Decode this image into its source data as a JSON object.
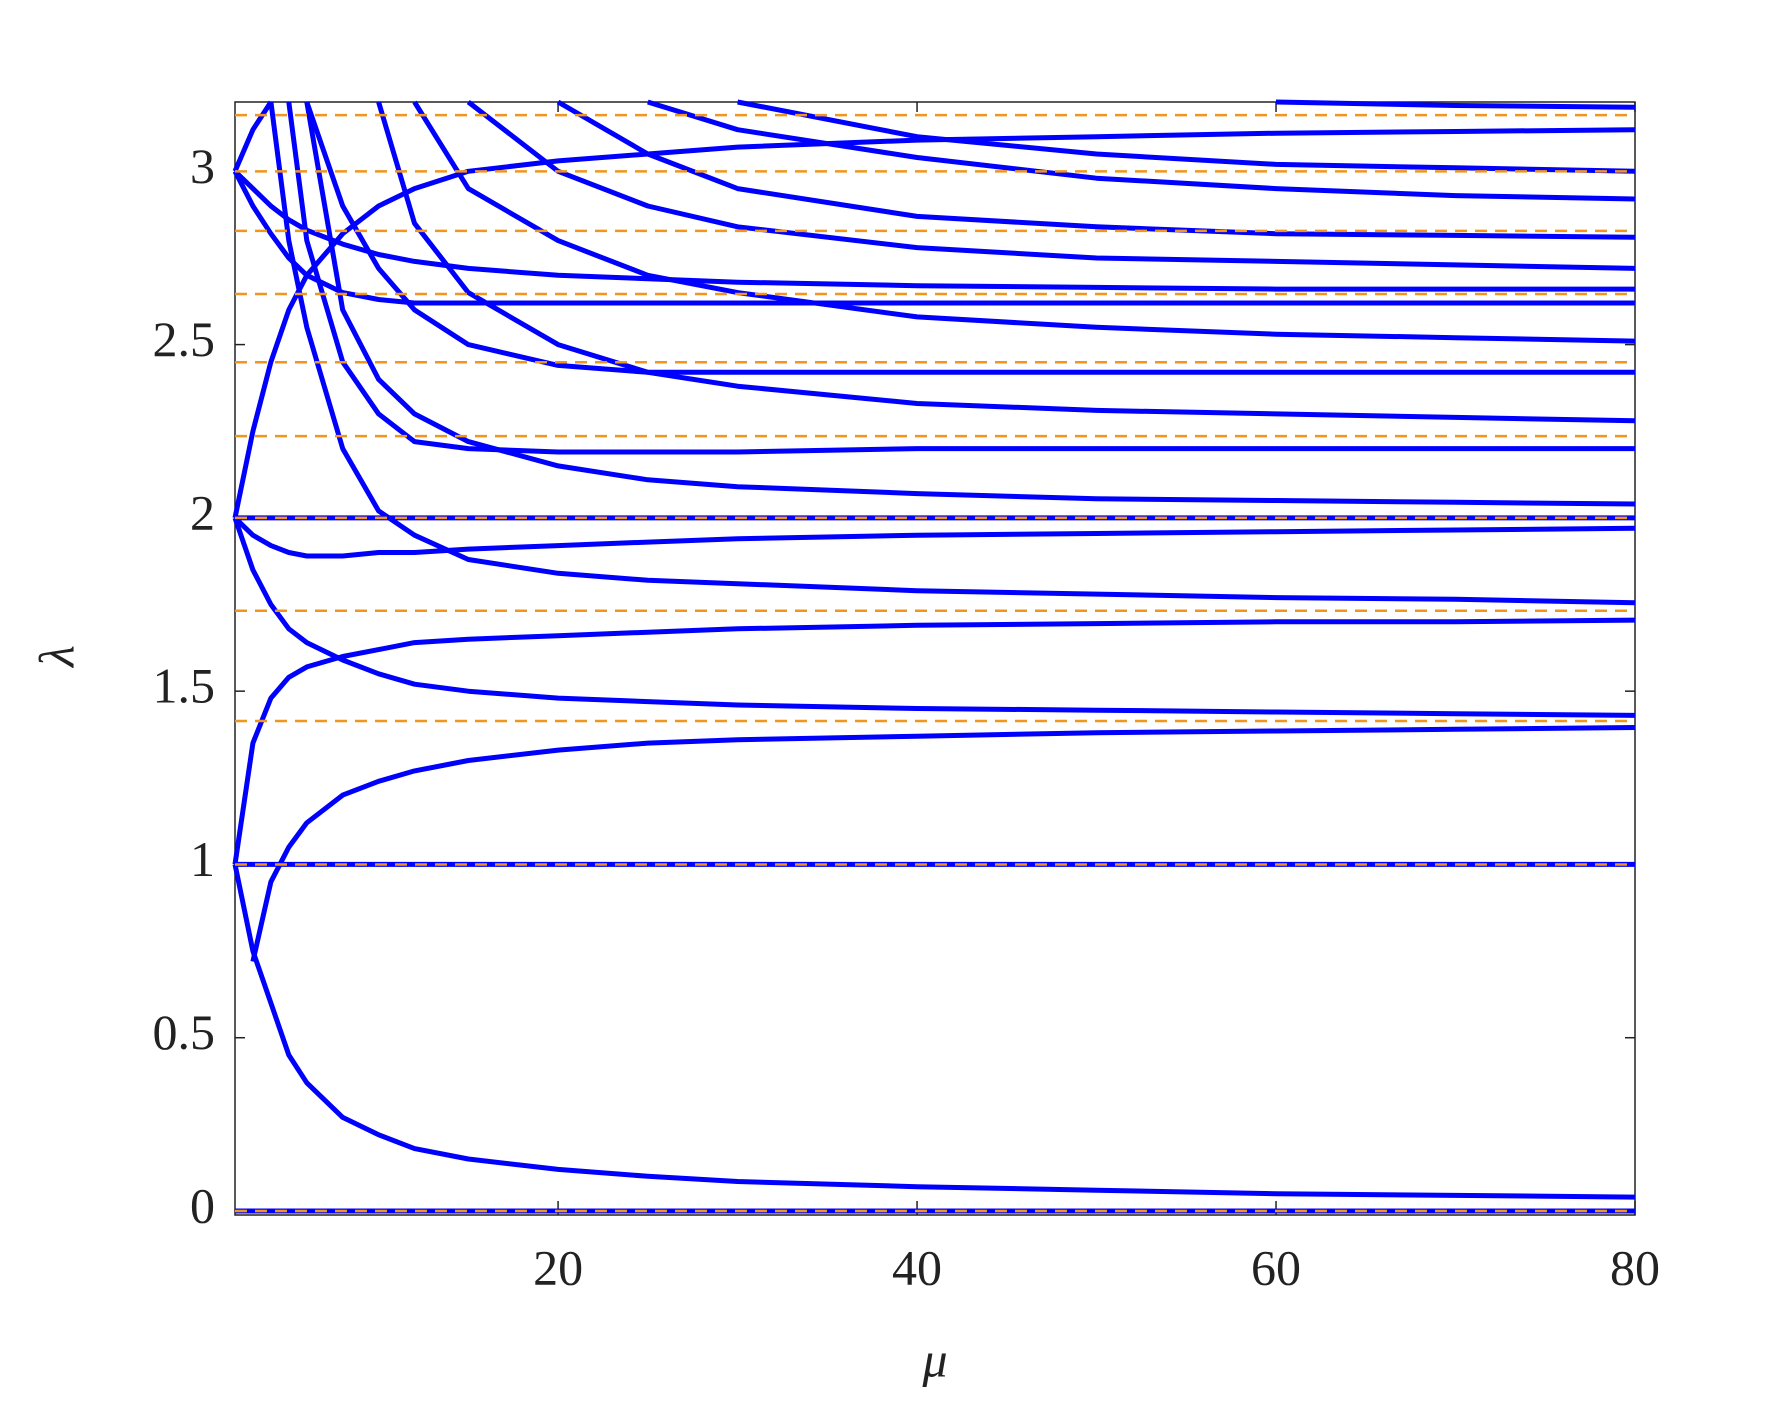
{
  "chart_data": {
    "type": "line",
    "xlabel": "μ",
    "ylabel": "λ",
    "x": [
      2,
      3,
      4,
      5,
      6,
      8,
      10,
      12,
      15,
      20,
      25,
      30,
      40,
      50,
      60,
      70,
      80
    ],
    "color": "#0000ff",
    "series": [
      {
        "values": [
          0,
          0,
          0,
          0,
          0,
          0,
          0,
          0,
          0,
          0,
          0,
          0,
          0,
          0,
          0,
          0,
          0
        ]
      },
      {
        "values": [
          1,
          1,
          1,
          1,
          1,
          1,
          1,
          1,
          1,
          1,
          1,
          1,
          1,
          1,
          1,
          1,
          1
        ]
      },
      {
        "values": [
          2,
          2,
          2,
          2,
          2,
          2,
          2,
          2,
          2,
          2,
          2,
          2,
          2,
          2,
          2,
          2,
          2
        ]
      },
      {
        "values": [
          1,
          0.75,
          0.6,
          0.45,
          0.37,
          0.27,
          0.22,
          0.18,
          0.15,
          0.12,
          0.1,
          0.085,
          0.07,
          0.06,
          0.05,
          0.045,
          0.04
        ]
      },
      {
        "values": [
          null,
          0.72,
          0.95,
          1.05,
          1.12,
          1.2,
          1.24,
          1.27,
          1.3,
          1.33,
          1.35,
          1.36,
          1.37,
          1.38,
          1.385,
          1.39,
          1.395
        ]
      },
      {
        "values": [
          1,
          1.35,
          1.48,
          1.54,
          1.57,
          1.6,
          1.62,
          1.64,
          1.65,
          1.66,
          1.67,
          1.68,
          1.69,
          1.695,
          1.7,
          1.7,
          1.705
        ]
      },
      {
        "values": [
          2,
          1.85,
          1.75,
          1.68,
          1.64,
          1.59,
          1.55,
          1.52,
          1.5,
          1.48,
          1.47,
          1.46,
          1.45,
          1.445,
          1.44,
          1.435,
          1.43
        ]
      },
      {
        "values": [
          2,
          1.95,
          1.92,
          1.9,
          1.89,
          1.89,
          1.9,
          1.9,
          1.91,
          1.92,
          1.93,
          1.94,
          1.95,
          1.955,
          1.96,
          1.965,
          1.97
        ]
      },
      {
        "values": [
          null,
          null,
          3.2,
          2.8,
          2.55,
          2.2,
          2.02,
          1.95,
          1.88,
          1.84,
          1.82,
          1.81,
          1.79,
          1.78,
          1.77,
          1.765,
          1.755
        ]
      },
      {
        "values": [
          2,
          2.25,
          2.45,
          2.6,
          2.7,
          2.82,
          2.9,
          2.95,
          3.0,
          3.03,
          3.05,
          3.07,
          3.09,
          3.1,
          3.11,
          3.115,
          3.12
        ]
      },
      {
        "values": [
          3,
          2.9,
          2.82,
          2.75,
          2.7,
          2.65,
          2.63,
          2.62,
          2.62,
          2.62,
          2.62,
          2.62,
          2.62,
          2.62,
          2.62,
          2.62,
          2.62
        ]
      },
      {
        "values": [
          3,
          2.95,
          2.9,
          2.86,
          2.83,
          2.79,
          2.76,
          2.74,
          2.72,
          2.7,
          2.69,
          2.68,
          2.67,
          2.665,
          2.66,
          2.66,
          2.66
        ]
      },
      {
        "values": [
          3,
          3.12,
          3.2,
          null,
          null,
          null,
          null,
          null,
          null,
          null,
          null,
          null,
          null,
          null,
          null,
          null,
          null
        ]
      },
      {
        "values": [
          null,
          null,
          null,
          3.2,
          2.8,
          2.45,
          2.3,
          2.22,
          2.2,
          2.19,
          2.19,
          2.19,
          2.2,
          2.2,
          2.2,
          2.2,
          2.2
        ]
      },
      {
        "values": [
          null,
          null,
          null,
          null,
          3.2,
          2.6,
          2.4,
          2.3,
          2.22,
          2.15,
          2.11,
          2.09,
          2.07,
          2.055,
          2.05,
          2.045,
          2.04
        ]
      },
      {
        "values": [
          null,
          null,
          null,
          null,
          null,
          null,
          3.2,
          2.85,
          2.65,
          2.5,
          2.42,
          2.38,
          2.33,
          2.31,
          2.3,
          2.29,
          2.28
        ]
      },
      {
        "values": [
          null,
          null,
          null,
          null,
          3.2,
          2.9,
          2.72,
          2.6,
          2.5,
          2.44,
          2.42,
          2.42,
          2.42,
          2.42,
          2.42,
          2.42,
          2.42
        ]
      },
      {
        "values": [
          null,
          null,
          null,
          null,
          null,
          null,
          null,
          3.2,
          2.95,
          2.8,
          2.7,
          2.65,
          2.58,
          2.55,
          2.53,
          2.52,
          2.51
        ]
      },
      {
        "values": [
          null,
          null,
          null,
          null,
          null,
          null,
          null,
          null,
          3.2,
          3.0,
          2.9,
          2.84,
          2.78,
          2.75,
          2.74,
          2.73,
          2.72
        ]
      },
      {
        "values": [
          null,
          null,
          null,
          null,
          null,
          null,
          null,
          null,
          null,
          3.2,
          3.05,
          2.95,
          2.87,
          2.84,
          2.82,
          2.815,
          2.81
        ]
      },
      {
        "values": [
          null,
          null,
          null,
          null,
          null,
          null,
          null,
          null,
          null,
          null,
          3.2,
          3.12,
          3.04,
          2.98,
          2.95,
          2.93,
          2.92
        ]
      },
      {
        "values": [
          null,
          null,
          null,
          null,
          null,
          null,
          null,
          null,
          null,
          null,
          null,
          3.2,
          3.1,
          3.05,
          3.02,
          3.01,
          3.0
        ]
      },
      {
        "values": [
          null,
          null,
          null,
          null,
          null,
          null,
          null,
          null,
          null,
          null,
          null,
          null,
          null,
          null,
          3.2,
          3.19,
          3.185
        ]
      }
    ],
    "reference_lines": {
      "color": "#f0961e",
      "values": [
        0,
        1,
        1.414,
        1.732,
        2,
        2.236,
        2.449,
        2.646,
        2.828,
        3,
        3.162
      ]
    },
    "xlim": [
      2,
      80
    ],
    "ylim": [
      0,
      3.2
    ],
    "xticks": [
      20,
      40,
      60,
      80
    ],
    "yticks": [
      0,
      0.5,
      1,
      1.5,
      2,
      2.5,
      3
    ]
  }
}
